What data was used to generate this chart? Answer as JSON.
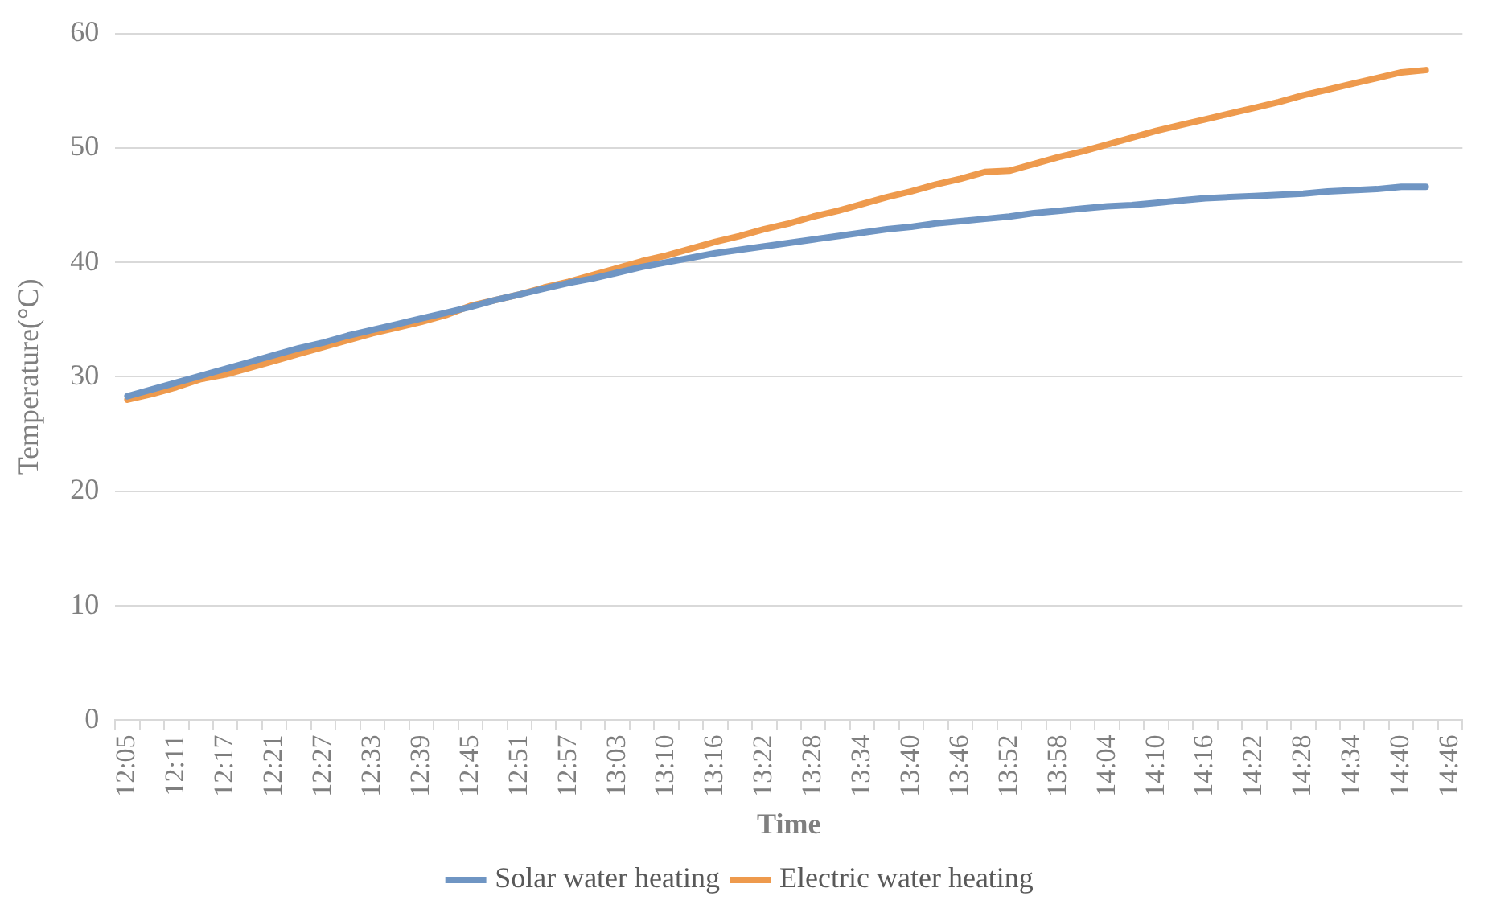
{
  "chart_data": {
    "type": "line",
    "xlabel": "Time",
    "ylabel": "Temperature(°C)",
    "categories": [
      "12:05",
      null,
      "12:11",
      null,
      "12:17",
      null,
      "12:21",
      null,
      "12:27",
      null,
      "12:33",
      null,
      "12:39",
      null,
      "12:45",
      null,
      "12:51",
      null,
      "12:57",
      null,
      "13:03",
      null,
      "13:10",
      null,
      "13:16",
      null,
      "13:22",
      null,
      "13:28",
      null,
      "13:34",
      null,
      "13:40",
      null,
      "13:46",
      null,
      "13:52",
      null,
      "13:58",
      null,
      "14:04",
      null,
      "14:10",
      null,
      "14:16",
      null,
      "14:22",
      null,
      "14:28",
      null,
      "14:34",
      null,
      "14:40",
      null,
      "14:46"
    ],
    "series": [
      {
        "name": "Solar water heating",
        "color": "#6f95c3",
        "values": [
          28.3,
          28.9,
          29.5,
          30.1,
          30.7,
          31.3,
          31.9,
          32.5,
          33.0,
          33.6,
          34.1,
          34.6,
          35.1,
          35.6,
          36.1,
          36.7,
          37.2,
          37.7,
          38.2,
          38.6,
          39.1,
          39.6,
          40.0,
          40.4,
          40.8,
          41.1,
          41.4,
          41.7,
          42.0,
          42.3,
          42.6,
          42.9,
          43.1,
          43.4,
          43.6,
          43.8,
          44.0,
          44.3,
          44.5,
          44.7,
          44.9,
          45.0,
          45.2,
          45.4,
          45.6,
          45.7,
          45.8,
          45.9,
          46.0,
          46.2,
          46.3,
          46.4,
          46.6,
          46.6,
          null
        ]
      },
      {
        "name": "Electric water heating",
        "color": "#ee9a4d",
        "values": [
          28.0,
          28.5,
          29.1,
          29.8,
          30.2,
          30.8,
          31.4,
          32.0,
          32.6,
          33.2,
          33.8,
          34.3,
          34.8,
          35.4,
          36.2,
          36.7,
          37.2,
          37.8,
          38.3,
          38.9,
          39.5,
          40.1,
          40.6,
          41.2,
          41.8,
          42.3,
          42.9,
          43.4,
          44.0,
          44.5,
          45.1,
          45.7,
          46.2,
          46.8,
          47.3,
          47.9,
          48.0,
          48.6,
          49.2,
          49.7,
          50.3,
          50.9,
          51.5,
          52.0,
          52.5,
          53.0,
          53.5,
          54.0,
          54.6,
          55.1,
          55.6,
          56.1,
          56.6,
          56.8,
          null
        ]
      }
    ],
    "ylim": [
      0,
      60
    ],
    "yticks": [
      0,
      10,
      20,
      30,
      40,
      50,
      60
    ],
    "grid": "y",
    "legend": "bottom",
    "marker": "none",
    "line_style": "solid"
  }
}
